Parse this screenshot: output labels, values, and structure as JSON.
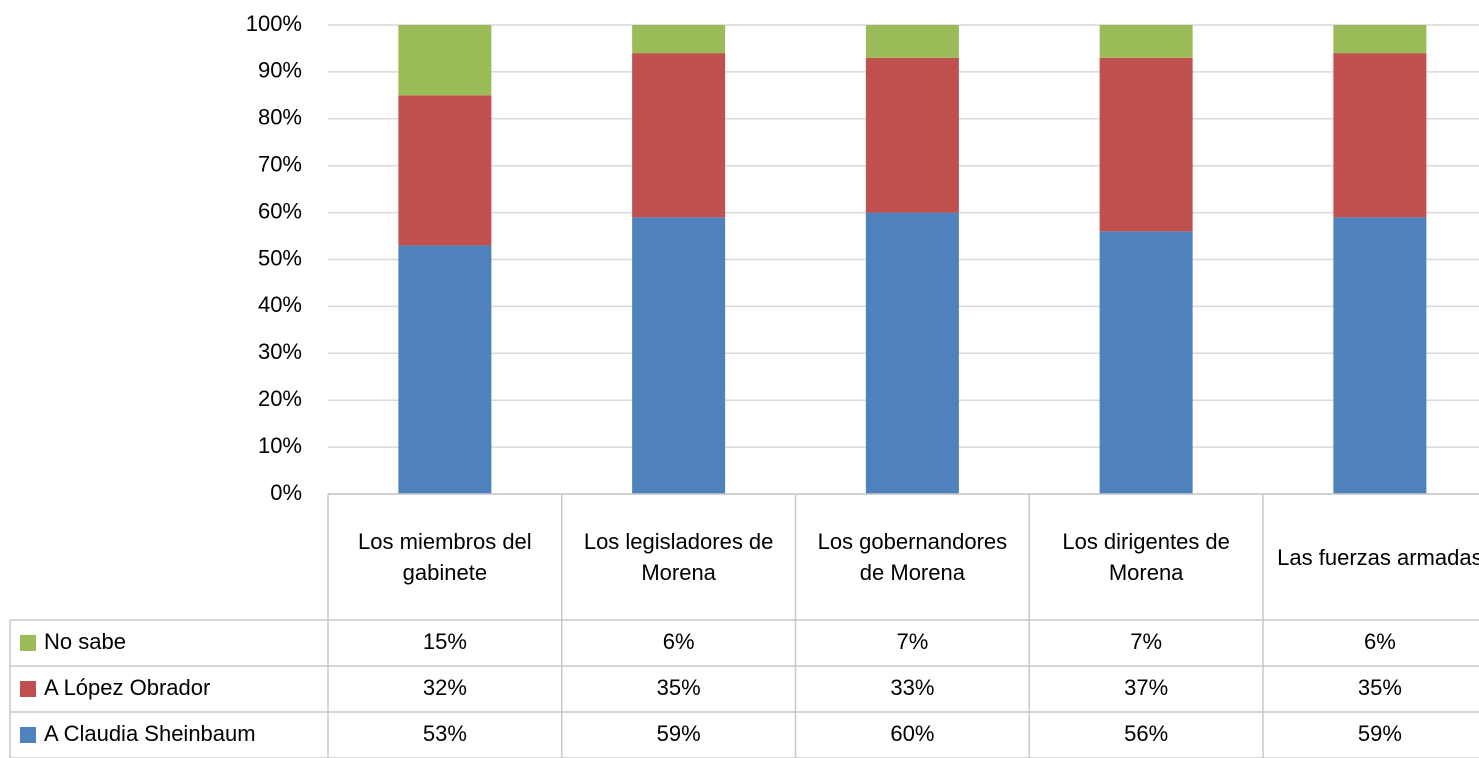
{
  "chart_data": {
    "type": "stacked_bar",
    "categories": [
      "Los miembros del gabinete",
      "Los legisladores de Morena",
      "Los gobernandores de Morena",
      "Los dirigentes de Morena",
      "Las fuerzas armadas"
    ],
    "series": [
      {
        "name": "A Claudia Sheinbaum",
        "color": "#4f81bd",
        "values": [
          53,
          59,
          60,
          56,
          59
        ],
        "value_labels": [
          "53%",
          "59%",
          "60%",
          "56%",
          "59%"
        ]
      },
      {
        "name": "A López Obrador",
        "color": "#c0504d",
        "values": [
          32,
          35,
          33,
          37,
          35
        ],
        "value_labels": [
          "32%",
          "35%",
          "33%",
          "37%",
          "35%"
        ]
      },
      {
        "name": "No sabe",
        "color": "#9bbb59",
        "values": [
          15,
          6,
          7,
          7,
          6
        ],
        "value_labels": [
          "15%",
          "6%",
          "7%",
          "7%",
          "6%"
        ]
      }
    ],
    "ylim": [
      0,
      100
    ],
    "yticks": [
      {
        "value": 0,
        "label": "0%"
      },
      {
        "value": 10,
        "label": "10%"
      },
      {
        "value": 20,
        "label": "20%"
      },
      {
        "value": 30,
        "label": "30%"
      },
      {
        "value": 40,
        "label": "40%"
      },
      {
        "value": 50,
        "label": "50%"
      },
      {
        "value": 60,
        "label": "60%"
      },
      {
        "value": 70,
        "label": "70%"
      },
      {
        "value": 80,
        "label": "80%"
      },
      {
        "value": 90,
        "label": "90%"
      },
      {
        "value": 100,
        "label": "100%"
      }
    ],
    "grid": true,
    "legend": "table"
  }
}
